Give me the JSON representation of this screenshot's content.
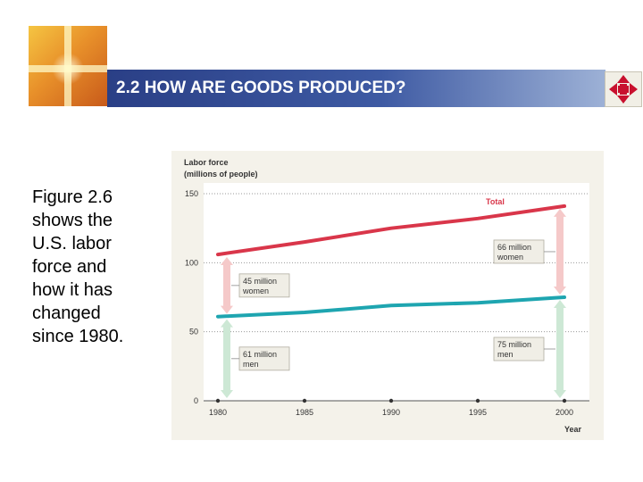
{
  "slide": {
    "title": "2.2 HOW ARE GOODS PRODUCED?",
    "caption": "Figure 2.6\nshows  the\nU.S. labor\nforce and\nhow it has\nchanged\nsince 1980."
  },
  "icons": {
    "logo": "cross-light-logo",
    "nav": "four-way-arrows-icon"
  },
  "colors": {
    "title_bar": "#2a3f86",
    "chart_bg": "#f4f2ea",
    "total_line": "#d9364a",
    "men_line": "#1ea5b0",
    "women_arrow": "#f5c9c9",
    "men_arrow": "#cde8d5"
  },
  "chart_data": {
    "type": "line",
    "ylabel_line1": "Labor force",
    "ylabel_line2": "(millions of people)",
    "xlabel": "Year",
    "ylim": [
      0,
      150
    ],
    "yticks": [
      0,
      50,
      100,
      150
    ],
    "xlim": [
      1980,
      2000
    ],
    "xticks": [
      1980,
      1985,
      1990,
      1995,
      2000
    ],
    "grid": "dotted horizontal at y ticks",
    "series": [
      {
        "name": "Total",
        "x": [
          1980,
          1985,
          1990,
          1995,
          2000
        ],
        "values": [
          106,
          115,
          125,
          132,
          141
        ]
      },
      {
        "x": [
          1980,
          1985,
          1990,
          1995,
          2000
        ],
        "values": [
          61,
          64,
          69,
          71,
          75
        ]
      }
    ],
    "annotations": [
      {
        "text_line1": "45 million",
        "text_line2": "women",
        "year": 1980,
        "from": 61,
        "to": 106,
        "color": "women"
      },
      {
        "text_line1": "61 million",
        "text_line2": "men",
        "year": 1980,
        "from": 0,
        "to": 61,
        "color": "men"
      },
      {
        "text_line1": "66 million",
        "text_line2": "women",
        "year": 2000,
        "from": 75,
        "to": 141,
        "color": "women"
      },
      {
        "text_line1": "75 million",
        "text_line2": "men",
        "year": 2000,
        "from": 0,
        "to": 75,
        "color": "men"
      }
    ]
  }
}
